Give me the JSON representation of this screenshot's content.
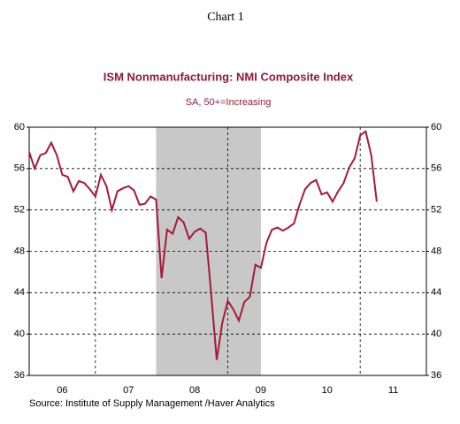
{
  "chart_data": {
    "type": "line",
    "header": "Chart 1",
    "title": "ISM Nonmanufacturing: NMI Composite Index",
    "subtitle": "SA, 50+=Increasing",
    "source": "Source:  Institute of Supply Management /Haver Analytics",
    "x": [
      2006,
      2006.083,
      2006.167,
      2006.25,
      2006.333,
      2006.417,
      2006.5,
      2006.583,
      2006.667,
      2006.75,
      2006.833,
      2006.917,
      2007,
      2007.083,
      2007.167,
      2007.25,
      2007.333,
      2007.417,
      2007.5,
      2007.583,
      2007.667,
      2007.75,
      2007.833,
      2007.917,
      2008,
      2008.083,
      2008.167,
      2008.25,
      2008.333,
      2008.417,
      2008.5,
      2008.583,
      2008.667,
      2008.75,
      2008.833,
      2008.917,
      2009,
      2009.083,
      2009.167,
      2009.25,
      2009.333,
      2009.417,
      2009.5,
      2009.583,
      2009.667,
      2009.75,
      2009.833,
      2009.917,
      2010,
      2010.083,
      2010.167,
      2010.25,
      2010.333,
      2010.417,
      2010.5,
      2010.583,
      2010.667,
      2010.75,
      2010.833,
      2010.917,
      2011,
      2011.083,
      2011.167,
      2011.25
    ],
    "series": [
      {
        "name": "NMI Composite Index",
        "color": "#a31a3c",
        "values": [
          57.6,
          56.0,
          57.3,
          57.5,
          58.5,
          57.3,
          55.4,
          55.2,
          53.8,
          54.8,
          54.6,
          54.0,
          53.3,
          55.4,
          54.3,
          52.0,
          53.8,
          54.1,
          54.3,
          53.9,
          52.5,
          52.6,
          53.3,
          53.0,
          45.4,
          50.1,
          49.7,
          51.3,
          50.8,
          49.2,
          49.9,
          50.2,
          49.8,
          43.8,
          37.5,
          41.1,
          43.2,
          42.4,
          41.3,
          43.1,
          43.6,
          46.7,
          46.4,
          48.8,
          50.1,
          50.3,
          50.0,
          50.3,
          50.7,
          52.5,
          54.0,
          54.6,
          54.9,
          53.5,
          53.7,
          52.8,
          53.8,
          54.6,
          56.1,
          57.0,
          59.2,
          59.6,
          57.3,
          52.8
        ]
      }
    ],
    "xlim": [
      2006,
      2012
    ],
    "xticks": [
      {
        "value": 2006.5,
        "label": "06"
      },
      {
        "value": 2007.5,
        "label": "07"
      },
      {
        "value": 2008.5,
        "label": "08"
      },
      {
        "value": 2009.5,
        "label": "09"
      },
      {
        "value": 2010.5,
        "label": "10"
      },
      {
        "value": 2011.5,
        "label": "11"
      }
    ],
    "xgrid": [
      2007,
      2009,
      2011
    ],
    "shade": [
      2007.917,
      2009.5
    ],
    "ylim": [
      36,
      60
    ],
    "yticks": [
      36,
      40,
      44,
      48,
      52,
      56,
      60
    ],
    "grid": true
  }
}
